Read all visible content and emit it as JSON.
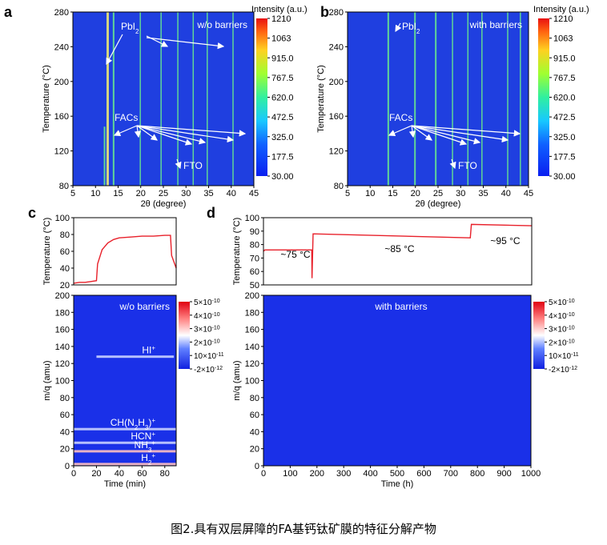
{
  "caption": "图2.具有双层屏障的FA基钙钛矿膜的特征分解产物",
  "colors": {
    "bg_blue": "#1f3fe0",
    "line_green": "#6cf08a",
    "line_red": "#e8202a",
    "arrow": "#ffffff"
  },
  "chart_data": [
    {
      "panel": "a",
      "type": "heatmap",
      "title": "w/o barriers",
      "xlabel": "2θ (degree)",
      "ylabel": "Temperature (°C)",
      "xlim": [
        5,
        45
      ],
      "ylim": [
        80,
        280
      ],
      "xticks": [
        "5",
        "10",
        "15",
        "20",
        "25",
        "30",
        "35",
        "40",
        "45"
      ],
      "yticks": [
        "80",
        "120",
        "160",
        "200",
        "240",
        "280"
      ],
      "lines": [
        {
          "x": 12.0,
          "y_to": 148
        },
        {
          "x": 12.7,
          "y_to": 280
        },
        {
          "x": 14.0,
          "y_to": 280
        },
        {
          "x": 19.9,
          "y_to": 280
        },
        {
          "x": 24.5,
          "y_to": 280
        },
        {
          "x": 28.2,
          "y_to": 280
        },
        {
          "x": 31.6,
          "y_to": 280
        },
        {
          "x": 34.7,
          "y_to": 280
        },
        {
          "x": 40.4,
          "y_to": 280
        }
      ],
      "labels": [
        "PbI",
        "2",
        "FACs",
        "FTO"
      ],
      "colorbar": {
        "title": "Intensity (a.u.)",
        "ticks": [
          "1210",
          "1063",
          "915.0",
          "767.5",
          "620.0",
          "472.5",
          "325.0",
          "177.5",
          "30.00"
        ]
      }
    },
    {
      "panel": "b",
      "type": "heatmap",
      "title": "with barriers",
      "xlabel": "2θ (degree)",
      "ylabel": "Temperature (°C)",
      "xlim": [
        5,
        45
      ],
      "ylim": [
        80,
        280
      ],
      "xticks": [
        "5",
        "10",
        "15",
        "20",
        "25",
        "30",
        "35",
        "40",
        "45"
      ],
      "yticks": [
        "80",
        "120",
        "160",
        "200",
        "240",
        "280"
      ],
      "lines": [
        {
          "x": 14.0,
          "y_to": 280
        },
        {
          "x": 19.9,
          "y_to": 280
        },
        {
          "x": 24.5,
          "y_to": 280
        },
        {
          "x": 28.2,
          "y_to": 280
        },
        {
          "x": 31.6,
          "y_to": 280
        },
        {
          "x": 34.7,
          "y_to": 280
        },
        {
          "x": 40.4,
          "y_to": 280
        },
        {
          "x": 43.2,
          "y_to": 280
        }
      ],
      "labels": [
        "PbI",
        "2",
        "FACs",
        "FTO"
      ],
      "colorbar": {
        "title": "Intensity (a.u.)",
        "ticks": [
          "1210",
          "1063",
          "915.0",
          "767.5",
          "620.0",
          "472.5",
          "325.0",
          "177.5",
          "30.00"
        ]
      }
    },
    {
      "panel": "c",
      "type": "line+heatmap",
      "temperature": {
        "ylabel": "Temperature (°C)",
        "ylim": [
          20,
          100
        ],
        "yticks": [
          "20",
          "40",
          "60",
          "80",
          "100"
        ],
        "x": [
          0,
          5,
          10,
          15,
          20,
          21,
          25,
          30,
          35,
          40,
          50,
          60,
          70,
          80,
          85,
          86,
          90
        ],
        "y": [
          22,
          23,
          23,
          24,
          25,
          45,
          62,
          70,
          74,
          76,
          77,
          78,
          78,
          79,
          79,
          55,
          40
        ]
      },
      "ms": {
        "title": "w/o barriers",
        "xlabel": "Time (min)",
        "ylabel": "m/q (amu)",
        "xlim": [
          0,
          90
        ],
        "ylim": [
          0,
          200
        ],
        "xticks": [
          "0",
          "20",
          "40",
          "60",
          "80"
        ],
        "yticks": [
          "0",
          "20",
          "40",
          "60",
          "80",
          "100",
          "120",
          "140",
          "160",
          "180",
          "200"
        ],
        "bands": [
          {
            "mq": 128,
            "from": 20,
            "to": 88,
            "label": "HI",
            "sup": "+"
          },
          {
            "mq": 43,
            "from": 0,
            "to": 90,
            "label": "CH(N",
            "sub1": "2",
            "mid": "H",
            "sub2": "3",
            "end": ")",
            "sup": "+"
          },
          {
            "mq": 27,
            "from": 0,
            "to": 90,
            "label": "HCN",
            "sup": "+"
          },
          {
            "mq": 17,
            "from": 0,
            "to": 90,
            "label": "NH",
            "sub1": "3",
            "sup": "+"
          },
          {
            "mq": 2,
            "from": 0,
            "to": 90,
            "label": "H",
            "sub1": "2",
            "sup": "+"
          }
        ],
        "colorbar_ticks": [
          "5×10",
          "-10",
          "4×10",
          "-10",
          "3×10",
          "-10",
          "2×10",
          "-10",
          "10×10",
          "-11",
          "-2×10",
          "-12"
        ]
      }
    },
    {
      "panel": "d",
      "type": "line+heatmap",
      "temperature": {
        "ylabel": "Temperature (°C)",
        "ylim": [
          50,
          100
        ],
        "yticks": [
          "50",
          "60",
          "70",
          "80",
          "90",
          "100"
        ],
        "x": [
          0,
          5,
          180,
          181,
          185,
          770,
          771,
          775,
          1000
        ],
        "y": [
          75,
          76,
          76,
          55,
          88,
          85,
          85,
          95,
          94
        ],
        "annotations": [
          "~75 °C",
          "~85 °C",
          "~95 °C"
        ]
      },
      "ms": {
        "title": "with barriers",
        "xlabel": "Time (h)",
        "ylabel": "m/q (amu)",
        "xlim": [
          0,
          1000
        ],
        "ylim": [
          0,
          200
        ],
        "xticks": [
          "0",
          "100",
          "200",
          "300",
          "400",
          "500",
          "600",
          "700",
          "800",
          "900",
          "1000"
        ],
        "yticks": [
          "0",
          "20",
          "40",
          "60",
          "80",
          "100",
          "120",
          "140",
          "160",
          "180",
          "200"
        ],
        "colorbar_ticks": [
          "5×10",
          "-10",
          "4×10",
          "-10",
          "3×10",
          "-10",
          "2×10",
          "-10",
          "10×10",
          "-11",
          "-2×10",
          "-12"
        ]
      }
    }
  ],
  "panel_letters": [
    "a",
    "b",
    "c",
    "d"
  ]
}
